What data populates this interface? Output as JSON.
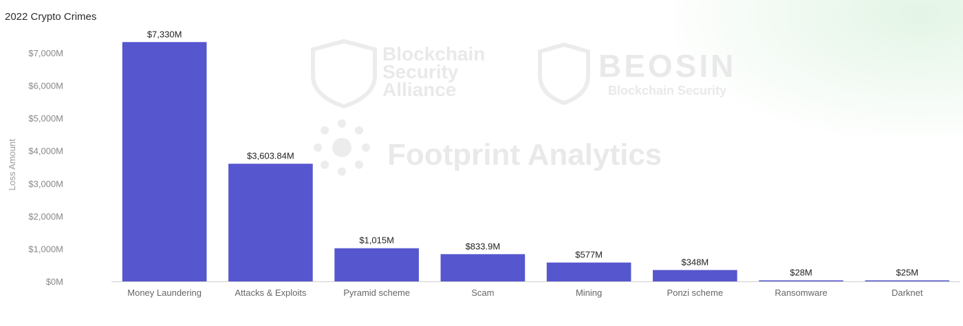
{
  "title": "2022 Crypto Crimes",
  "watermarks": {
    "alliance_line1": "Blockchain",
    "alliance_line2": "Security",
    "alliance_line3": "Alliance",
    "beosin_name": "BEOSIN",
    "beosin_tagline": "Blockchain Security",
    "footprint_name": "Footprint Analytics"
  },
  "colors": {
    "bar": "#5656cf",
    "axis": "#cfcfcf",
    "background_accent": "#e3f5e6"
  },
  "chart_data": {
    "type": "bar",
    "title": "2022 Crypto Crimes",
    "xlabel": "",
    "ylabel": "Loss Amount",
    "ylim": [
      0,
      7000
    ],
    "yticks": [
      0,
      1000,
      2000,
      3000,
      4000,
      5000,
      6000,
      7000
    ],
    "ytick_labels": [
      "$0M",
      "$1,000M",
      "$2,000M",
      "$3,000M",
      "$4,000M",
      "$5,000M",
      "$6,000M",
      "$7,000M"
    ],
    "grid": false,
    "categories": [
      "Money Laundering",
      "Attacks & Exploits",
      "Pyramid scheme",
      "Scam",
      "Mining",
      "Ponzi scheme",
      "Ransomware",
      "Darknet"
    ],
    "values": [
      7330,
      3603.84,
      1015,
      833.9,
      577,
      348,
      28,
      25
    ],
    "data_labels": [
      "$7,330M",
      "$3,603.84M",
      "$1,015M",
      "$833.9M",
      "$577M",
      "$348M",
      "$28M",
      "$25M"
    ]
  }
}
